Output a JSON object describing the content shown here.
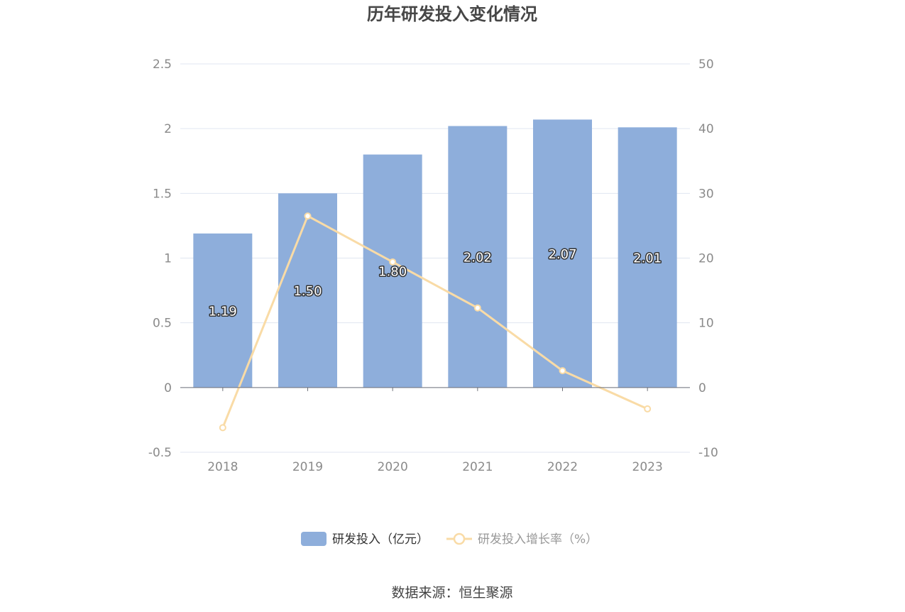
{
  "chart_data": {
    "type": "bar",
    "title": "历年研发投入变化情况",
    "categories": [
      "2018",
      "2019",
      "2020",
      "2021",
      "2022",
      "2023"
    ],
    "series": [
      {
        "name": "研发投入（亿元）",
        "type": "bar",
        "axis": "left",
        "color": "#8eaedb",
        "values": [
          1.19,
          1.5,
          1.8,
          2.02,
          2.07,
          2.01
        ],
        "labels": [
          "1.19",
          "1.50",
          "1.80",
          "2.02",
          "2.07",
          "2.01"
        ]
      },
      {
        "name": "研发投入增长率（%）",
        "type": "line",
        "axis": "right",
        "color": "#f9dba6",
        "values": [
          -6.2,
          26.5,
          19.4,
          12.3,
          2.6,
          -3.3
        ]
      }
    ],
    "y_left": {
      "min": -0.5,
      "max": 2.5,
      "ticks": [
        "-0.5",
        "0",
        "0.5",
        "1",
        "1.5",
        "2",
        "2.5"
      ]
    },
    "y_right": {
      "min": -10,
      "max": 50,
      "ticks": [
        "-10",
        "0",
        "10",
        "20",
        "30",
        "40",
        "50"
      ]
    },
    "grid": true,
    "legend_position": "bottom"
  },
  "source": "数据来源：恒生聚源"
}
